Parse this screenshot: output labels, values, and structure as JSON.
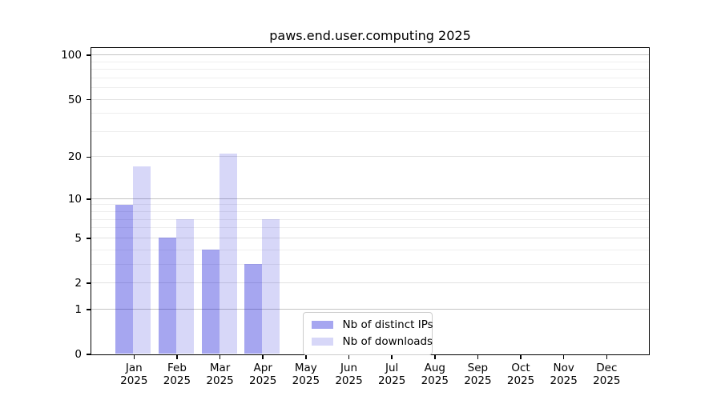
{
  "chart_data": {
    "type": "bar",
    "title": "paws.end.user.computing 2025",
    "xlabel": "",
    "ylabel": "",
    "categories": [
      "Jan 2025",
      "Feb 2025",
      "Mar 2025",
      "Apr 2025",
      "May 2025",
      "Jun 2025",
      "Jul 2025",
      "Aug 2025",
      "Sep 2025",
      "Oct 2025",
      "Nov 2025",
      "Dec 2025"
    ],
    "series": [
      {
        "name": "Nb of distinct IPs",
        "color": "#0000d4",
        "fill_alpha": 0.35,
        "approx_rendered_color": "#a6a6f0",
        "values": [
          9,
          5,
          4,
          3,
          0,
          0,
          0,
          0,
          0,
          0,
          0,
          0
        ]
      },
      {
        "name": "Nb of downloads",
        "color": "#0000d4",
        "fill_alpha": 0.155,
        "approx_rendered_color": "#d8d8f8",
        "values": [
          17,
          7,
          21,
          7,
          0,
          0,
          0,
          0,
          0,
          0,
          0,
          0
        ]
      }
    ],
    "yscale": "log-like (symlog/log1p)",
    "ylim": [
      0,
      110
    ],
    "yticks": [
      0,
      1,
      2,
      5,
      10,
      20,
      50,
      100
    ],
    "minor_yticks": [
      3,
      4,
      6,
      7,
      8,
      9,
      30,
      40,
      60,
      70,
      80,
      90
    ],
    "grid": true,
    "legend_position": "lower center"
  },
  "colors": {
    "grid_major": "#c4c4c4",
    "grid_mid": "#e2e2e2",
    "grid_minor": "#eeeeee",
    "spine": "#000000",
    "text": "#000000",
    "legend_border": "#cccccc",
    "background": "#ffffff"
  }
}
